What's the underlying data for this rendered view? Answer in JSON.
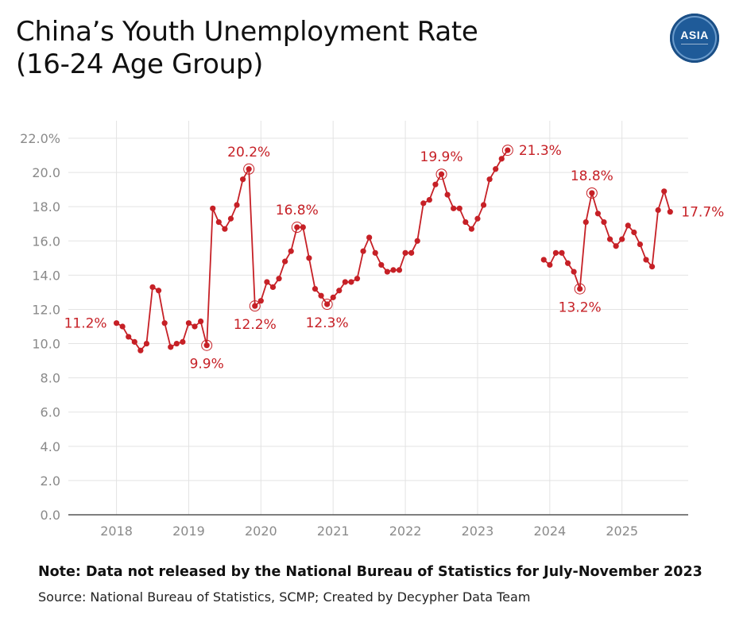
{
  "title_line1": "China’s Youth Unemployment Rate",
  "title_line2": "(16-24 Age Group)",
  "logo": {
    "text": "ASIA"
  },
  "note": "Note: Data not released by the National Bureau of Statistics for July-November 2023",
  "source": "Source: National Bureau of Statistics, SCMP; Created by Decypher Data Team",
  "colors": {
    "series": "#c62026",
    "grid": "#e3e3e3",
    "axis": "#555555",
    "tick_text": "#8a8a8a",
    "logo": "#1f5b99"
  },
  "chart_data": {
    "type": "line",
    "title": "China’s Youth Unemployment Rate",
    "subtitle": "(16-24 Age Group)",
    "xlabel": "",
    "ylabel": "",
    "ylim": [
      0,
      22
    ],
    "xlim": [
      "2017-05",
      "2025-12"
    ],
    "grid": true,
    "legend": "none",
    "y_ticks": [
      "0.0",
      "2.0",
      "4.0",
      "6.0",
      "8.0",
      "10.0",
      "12.0",
      "14.0",
      "16.0",
      "18.0",
      "20.0",
      "22.0%"
    ],
    "x_ticks": [
      "2018",
      "2019",
      "2020",
      "2021",
      "2022",
      "2023",
      "2024",
      "2025"
    ],
    "series": [
      {
        "segments": [
          [
            [
              "2018-01",
              11.2
            ],
            [
              "2018-02",
              11.0
            ],
            [
              "2018-03",
              10.4
            ],
            [
              "2018-04",
              10.1
            ],
            [
              "2018-05",
              9.6
            ],
            [
              "2018-06",
              10.0
            ],
            [
              "2018-07",
              13.3
            ],
            [
              "2018-08",
              13.1
            ],
            [
              "2018-09",
              11.2
            ],
            [
              "2018-10",
              9.8
            ],
            [
              "2018-11",
              10.0
            ],
            [
              "2018-12",
              10.1
            ],
            [
              "2019-01",
              11.2
            ],
            [
              "2019-02",
              11.0
            ],
            [
              "2019-03",
              11.3
            ],
            [
              "2019-04",
              9.9
            ],
            [
              "2019-05",
              17.9
            ],
            [
              "2019-06",
              17.1
            ],
            [
              "2019-07",
              16.7
            ],
            [
              "2019-08",
              17.3
            ],
            [
              "2019-09",
              18.1
            ],
            [
              "2019-10",
              19.6
            ],
            [
              "2019-11",
              20.2
            ],
            [
              "2019-12",
              12.2
            ],
            [
              "2020-01",
              12.5
            ],
            [
              "2020-02",
              13.6
            ],
            [
              "2020-03",
              13.3
            ],
            [
              "2020-04",
              13.8
            ],
            [
              "2020-05",
              14.8
            ],
            [
              "2020-06",
              15.4
            ],
            [
              "2020-07",
              16.8
            ],
            [
              "2020-08",
              16.8
            ],
            [
              "2020-09",
              15.0
            ],
            [
              "2020-10",
              13.2
            ],
            [
              "2020-11",
              12.8
            ],
            [
              "2020-12",
              12.3
            ],
            [
              "2021-01",
              12.7
            ],
            [
              "2021-02",
              13.1
            ],
            [
              "2021-03",
              13.6
            ],
            [
              "2021-04",
              13.6
            ],
            [
              "2021-05",
              13.8
            ],
            [
              "2021-06",
              15.4
            ],
            [
              "2021-07",
              16.2
            ],
            [
              "2021-08",
              15.3
            ],
            [
              "2021-09",
              14.6
            ],
            [
              "2021-10",
              14.2
            ],
            [
              "2021-11",
              14.3
            ],
            [
              "2021-12",
              14.3
            ],
            [
              "2022-01",
              15.3
            ],
            [
              "2022-02",
              15.3
            ],
            [
              "2022-03",
              16.0
            ],
            [
              "2022-04",
              18.2
            ],
            [
              "2022-05",
              18.4
            ],
            [
              "2022-06",
              19.3
            ],
            [
              "2022-07",
              19.9
            ],
            [
              "2022-08",
              18.7
            ],
            [
              "2022-09",
              17.9
            ],
            [
              "2022-10",
              17.9
            ],
            [
              "2022-11",
              17.1
            ],
            [
              "2022-12",
              16.7
            ],
            [
              "2023-01",
              17.3
            ],
            [
              "2023-02",
              18.1
            ],
            [
              "2023-03",
              19.6
            ],
            [
              "2023-04",
              20.2
            ],
            [
              "2023-05",
              20.8
            ],
            [
              "2023-06",
              21.3
            ]
          ],
          [
            [
              "2023-12",
              14.9
            ],
            [
              "2024-01",
              14.6
            ],
            [
              "2024-02",
              15.3
            ],
            [
              "2024-03",
              15.3
            ],
            [
              "2024-04",
              14.7
            ],
            [
              "2024-05",
              14.2
            ],
            [
              "2024-06",
              13.2
            ],
            [
              "2024-07",
              17.1
            ],
            [
              "2024-08",
              18.8
            ],
            [
              "2024-09",
              17.6
            ],
            [
              "2024-10",
              17.1
            ],
            [
              "2024-11",
              16.1
            ],
            [
              "2024-12",
              15.7
            ],
            [
              "2025-01",
              16.1
            ],
            [
              "2025-02",
              16.9
            ],
            [
              "2025-03",
              16.5
            ],
            [
              "2025-04",
              15.8
            ],
            [
              "2025-05",
              14.9
            ],
            [
              "2025-06",
              14.5
            ],
            [
              "2025-07",
              17.8
            ],
            [
              "2025-08",
              18.9
            ],
            [
              "2025-09",
              17.7
            ]
          ]
        ]
      }
    ],
    "annotations": [
      {
        "x": "2018-01",
        "y": 11.2,
        "label": "11.2%",
        "pos": "left",
        "circle": false
      },
      {
        "x": "2019-04",
        "y": 9.9,
        "label": "9.9%",
        "pos": "below",
        "circle": true
      },
      {
        "x": "2019-11",
        "y": 20.2,
        "label": "20.2%",
        "pos": "above",
        "circle": true
      },
      {
        "x": "2019-12",
        "y": 12.2,
        "label": "12.2%",
        "pos": "below",
        "circle": true
      },
      {
        "x": "2020-07",
        "y": 16.8,
        "label": "16.8%",
        "pos": "above",
        "circle": true
      },
      {
        "x": "2020-12",
        "y": 12.3,
        "label": "12.3%",
        "pos": "below",
        "circle": true
      },
      {
        "x": "2022-07",
        "y": 19.9,
        "label": "19.9%",
        "pos": "above",
        "circle": true
      },
      {
        "x": "2023-06",
        "y": 21.3,
        "label": "21.3%",
        "pos": "right",
        "circle": true
      },
      {
        "x": "2024-06",
        "y": 13.2,
        "label": "13.2%",
        "pos": "below",
        "circle": true
      },
      {
        "x": "2024-08",
        "y": 18.8,
        "label": "18.8%",
        "pos": "above",
        "circle": true
      },
      {
        "x": "2025-09",
        "y": 17.7,
        "label": "17.7%",
        "pos": "right",
        "circle": false
      }
    ]
  }
}
